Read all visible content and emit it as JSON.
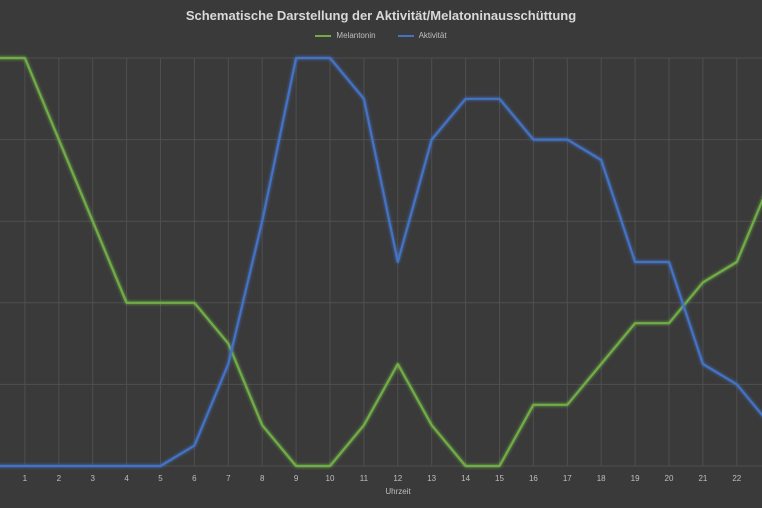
{
  "chart_data": {
    "type": "line",
    "title": "Schematische Darstellung der Aktivität/Melatoninausschüttung",
    "xlabel": "Uhrzeit",
    "ylabel": "",
    "x": [
      0,
      1,
      2,
      3,
      4,
      5,
      6,
      7,
      8,
      9,
      10,
      11,
      12,
      13,
      14,
      15,
      16,
      17,
      18,
      19,
      20,
      21,
      22,
      23
    ],
    "x_tick_labels": [
      "1",
      "2",
      "3",
      "4",
      "5",
      "6",
      "7",
      "8",
      "9",
      "10",
      "11",
      "12",
      "13",
      "14",
      "15",
      "16",
      "17",
      "18",
      "19",
      "20",
      "21",
      "22"
    ],
    "ylim": [
      0,
      10
    ],
    "grid": true,
    "legend_position": "top",
    "series": [
      {
        "name": "Melantonin",
        "color": "#70ad47",
        "values": [
          10,
          10,
          8,
          6,
          4,
          4,
          4,
          3,
          1,
          0,
          0,
          1,
          2.5,
          1,
          0,
          0,
          1.5,
          1.5,
          2.5,
          3.5,
          3.5,
          4.5,
          5,
          7
        ]
      },
      {
        "name": "Aktivität",
        "color": "#4472c4",
        "values": [
          0,
          0,
          0,
          0,
          0,
          0,
          0.5,
          2.5,
          6,
          10,
          10,
          9,
          5,
          8,
          9,
          9,
          8,
          8,
          7.5,
          5,
          5,
          2.5,
          2,
          1
        ]
      }
    ]
  }
}
